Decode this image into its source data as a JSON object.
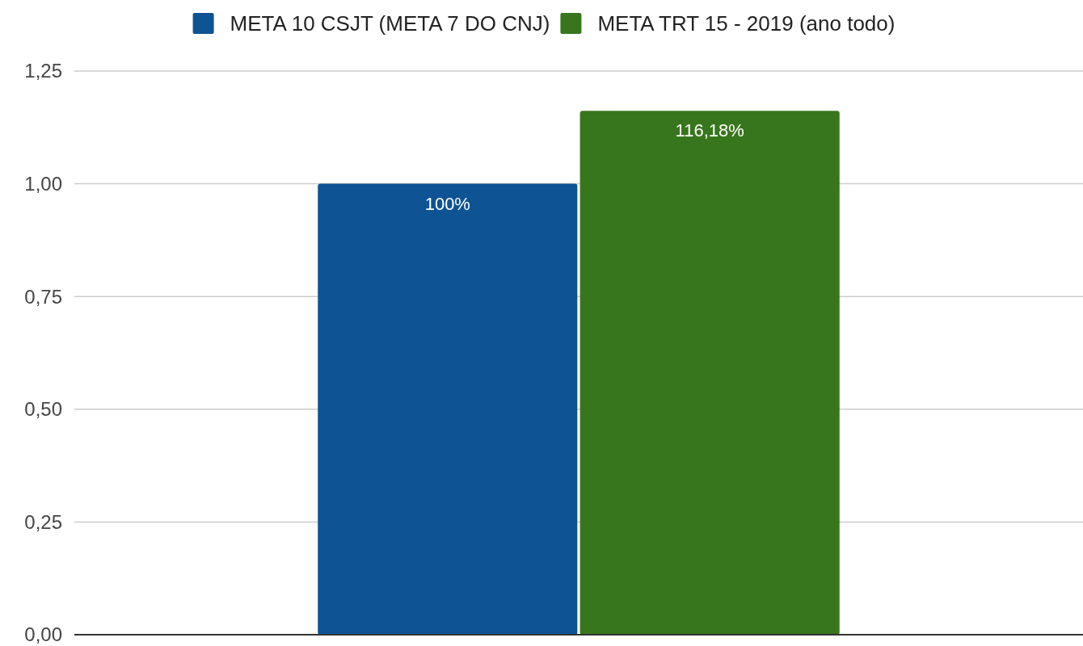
{
  "chart_data": {
    "type": "bar",
    "categories": [
      null
    ],
    "series": [
      {
        "name": "META 10 CSJT (META 7 DO CNJ)",
        "color": "#0e5394",
        "values": [
          1.0
        ],
        "value_labels": [
          "100%"
        ]
      },
      {
        "name": "META TRT 15 - 2019  (ano todo)",
        "color": "#38761d",
        "values": [
          1.1618
        ],
        "value_labels": [
          "116,18%"
        ]
      }
    ],
    "ylim": [
      0,
      1.25
    ],
    "yticks": [
      {
        "value": 0,
        "label": "0,00"
      },
      {
        "value": 0.25,
        "label": "0,25"
      },
      {
        "value": 0.5,
        "label": "0,50"
      },
      {
        "value": 0.75,
        "label": "0,75"
      },
      {
        "value": 1,
        "label": "1,00"
      },
      {
        "value": 1.25,
        "label": "1,25"
      }
    ],
    "grid": "y",
    "legend": "top"
  }
}
